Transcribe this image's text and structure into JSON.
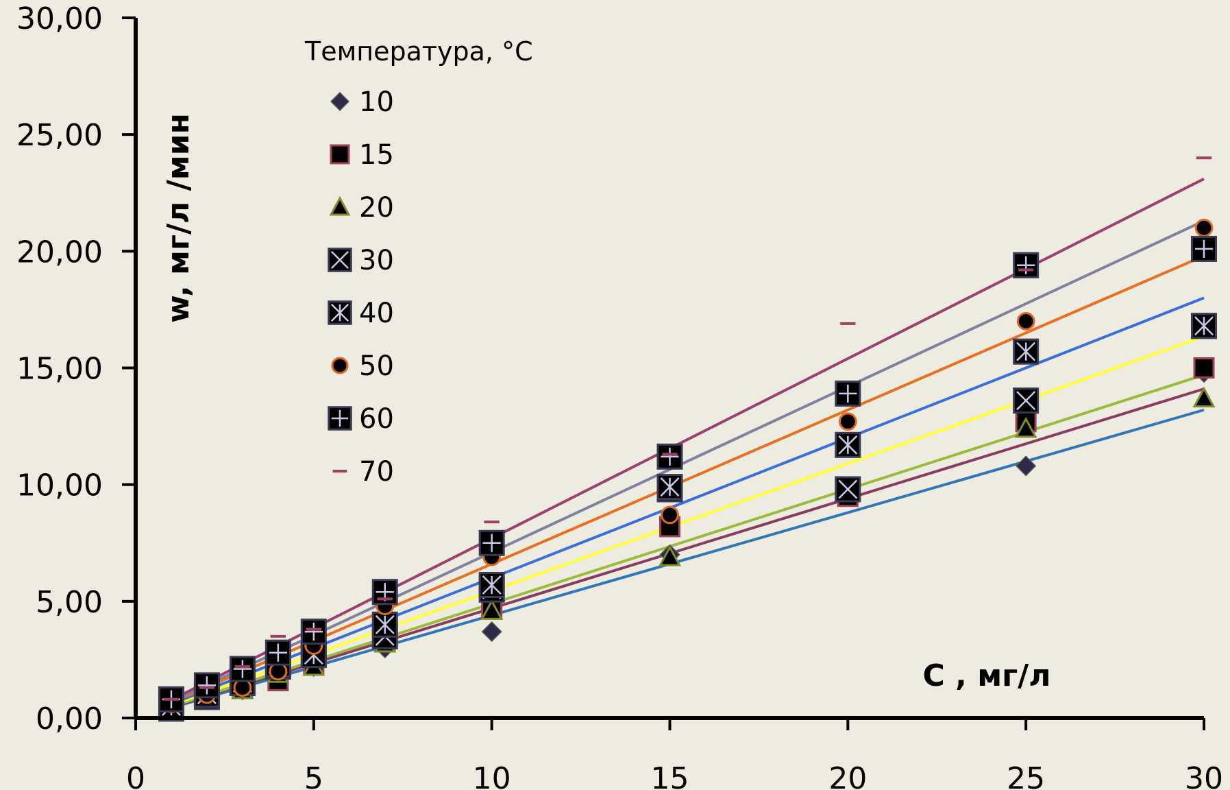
{
  "chart_data": {
    "type": "scatter",
    "xlabel": "С , мг/л",
    "ylabel": "w, мг/л /мин",
    "xlim": [
      0,
      30
    ],
    "ylim": [
      0,
      30
    ],
    "xticks": [
      "0",
      "5",
      "10",
      "15",
      "20",
      "25",
      "30"
    ],
    "yticks": [
      "0,00",
      "5,00",
      "10,00",
      "15,00",
      "20,00",
      "25,00",
      "30,00"
    ],
    "grid": false,
    "legend": {
      "title": "Температура, °С",
      "position": "top-left"
    },
    "series": [
      {
        "name": "10",
        "marker": "diamond",
        "color": "#2e2a4a",
        "trend_color": "#2f77b8",
        "trend_slope": 0.44,
        "x": [
          1,
          2,
          3,
          4,
          5,
          7,
          10,
          15,
          20,
          25,
          30
        ],
        "y": [
          0.3,
          0.8,
          1.2,
          1.7,
          2.2,
          3.0,
          3.7,
          7.0,
          9.5,
          10.8,
          14.8
        ]
      },
      {
        "name": "15",
        "marker": "square",
        "color": "#000000",
        "edge": "#a0405a",
        "trend_color": "#8b3a62",
        "trend_slope": 0.47,
        "x": [
          1,
          2,
          3,
          4,
          5,
          7,
          10,
          15,
          20,
          25,
          30
        ],
        "y": [
          0.4,
          0.9,
          1.3,
          1.6,
          2.3,
          3.3,
          4.7,
          8.2,
          9.5,
          12.7,
          15.0
        ]
      },
      {
        "name": "20",
        "marker": "triangle",
        "color": "#000000",
        "edge": "#7f8c2a",
        "trend_color": "#9bbb3b",
        "trend_slope": 0.49,
        "x": [
          1,
          2,
          3,
          4,
          5,
          7,
          10,
          15,
          20,
          25,
          30
        ],
        "y": [
          0.4,
          0.9,
          1.2,
          1.9,
          2.2,
          3.2,
          4.6,
          6.9,
          9.8,
          12.4,
          13.7
        ]
      },
      {
        "name": "30",
        "marker": "square-x",
        "color": "#000000",
        "edge": "#3a3a55",
        "trend_color": "#ffff33",
        "trend_slope": 0.545,
        "x": [
          1,
          2,
          3,
          4,
          5,
          7,
          10,
          15,
          20,
          25,
          30
        ],
        "y": [
          0.4,
          0.9,
          1.5,
          2.2,
          2.7,
          3.5,
          5.5,
          9.8,
          9.8,
          13.6,
          16.8
        ]
      },
      {
        "name": "40",
        "marker": "square-star",
        "color": "#000000",
        "edge": "#3a3a55",
        "trend_color": "#3a6fd8",
        "trend_slope": 0.6,
        "x": [
          1,
          2,
          3,
          4,
          5,
          7,
          10,
          15,
          20,
          25,
          30
        ],
        "y": [
          0.5,
          1.0,
          1.5,
          2.3,
          2.7,
          4.0,
          5.7,
          9.9,
          11.7,
          15.7,
          16.8
        ]
      },
      {
        "name": "50",
        "marker": "circle",
        "color": "#000000",
        "edge": "#e06a20",
        "trend_color": "#e87020",
        "trend_slope": 0.66,
        "x": [
          1,
          2,
          3,
          4,
          5,
          7,
          10,
          15,
          20,
          25,
          30
        ],
        "y": [
          0.6,
          1.0,
          1.3,
          2.0,
          3.1,
          4.8,
          6.9,
          8.7,
          12.7,
          17.0,
          21.0
        ]
      },
      {
        "name": "60",
        "marker": "square-plus",
        "color": "#000000",
        "edge": "#3a3a55",
        "trend_color": "#8080a0",
        "trend_slope": 0.71,
        "x": [
          1,
          2,
          3,
          4,
          5,
          7,
          10,
          15,
          20,
          25,
          30
        ],
        "y": [
          0.8,
          1.4,
          2.1,
          2.8,
          3.7,
          5.4,
          7.5,
          11.2,
          13.9,
          19.4,
          20.1
        ]
      },
      {
        "name": "70",
        "marker": "dash",
        "color": "#9b4060",
        "trend_color": "#9b4070",
        "trend_slope": 0.77,
        "x": [
          1,
          2,
          3,
          4,
          5,
          7,
          10,
          15,
          20,
          25,
          30
        ],
        "y": [
          0.8,
          1.3,
          2.2,
          3.5,
          3.8,
          5.1,
          8.4,
          11.3,
          16.9,
          19.2,
          24.0
        ]
      }
    ]
  }
}
